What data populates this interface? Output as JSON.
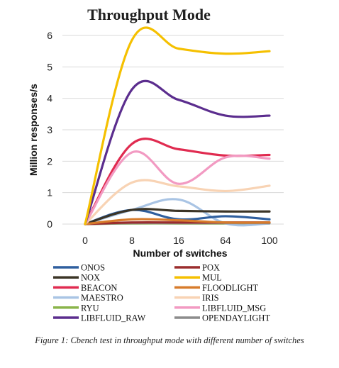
{
  "chart_data": {
    "type": "line",
    "title": "Throughput Mode",
    "xlabel": "Number of switches",
    "ylabel": "Million responses/s",
    "categories": [
      "0",
      "8",
      "16",
      "64",
      "100"
    ],
    "ylim": [
      0,
      6
    ],
    "yticks": [
      "0",
      "1",
      "2",
      "3",
      "4",
      "5",
      "6"
    ],
    "grid": "horizontal",
    "legend_position": "bottom",
    "series": [
      {
        "name": "ONOS",
        "color": "#2f5f9e",
        "values": [
          0,
          0.45,
          0.15,
          0.25,
          0.15
        ]
      },
      {
        "name": "POX",
        "color": "#9b2d2d",
        "values": [
          0,
          0.05,
          0.05,
          0.05,
          0.05
        ]
      },
      {
        "name": "NOX",
        "color": "#3b3426",
        "values": [
          0,
          0.45,
          0.42,
          0.4,
          0.4
        ]
      },
      {
        "name": "MUL",
        "color": "#f5c000",
        "values": [
          0,
          5.85,
          5.58,
          5.42,
          5.5
        ]
      },
      {
        "name": "BEACON",
        "color": "#e02b50",
        "values": [
          0,
          2.55,
          2.38,
          2.18,
          2.2
        ]
      },
      {
        "name": "FLOODLIGHT",
        "color": "#d77b2b",
        "values": [
          0,
          0.15,
          0.12,
          0.05,
          0.05
        ]
      },
      {
        "name": "MAESTRO",
        "color": "#a9c4e4",
        "values": [
          0,
          0.45,
          0.78,
          0.02,
          0.02
        ]
      },
      {
        "name": "IRIS",
        "color": "#f8d3b4",
        "values": [
          0,
          1.32,
          1.2,
          1.05,
          1.22
        ]
      },
      {
        "name": "RYU",
        "color": "#8ab44a",
        "values": [
          0,
          0.02,
          0.02,
          0.02,
          0.02
        ]
      },
      {
        "name": "LIBFLUID_MSG",
        "color": "#f29ac2",
        "values": [
          0,
          2.28,
          1.28,
          2.12,
          2.08
        ]
      },
      {
        "name": "LIBFLUID_RAW",
        "color": "#5b2d8e",
        "values": [
          0,
          4.28,
          3.95,
          3.45,
          3.45
        ]
      },
      {
        "name": "OPENDAYLIGHT",
        "color": "#8c8c8c",
        "values": [
          0,
          0.03,
          0.03,
          0.03,
          0.03
        ]
      }
    ]
  },
  "caption": "Figure 1: Cbench test in throughput mode with different number of switches"
}
